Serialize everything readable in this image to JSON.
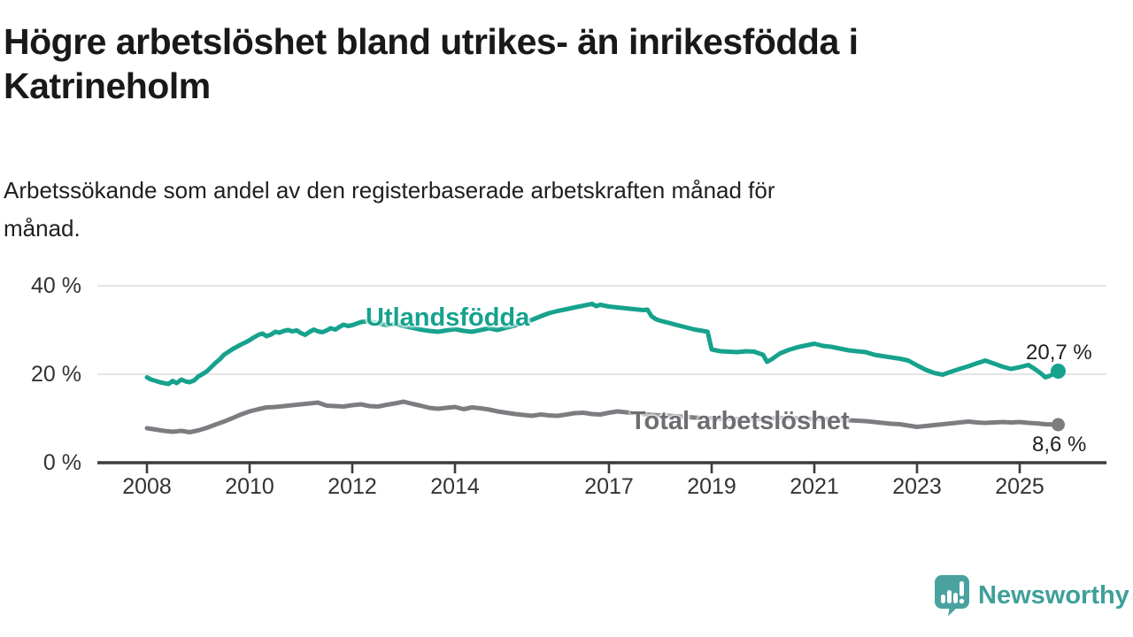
{
  "title": "Högre arbetslöshet bland utrikes- än inrikesfödda i\nKatrineholm",
  "subtitle": "Arbetssökande som andel av den registerbaserade arbetskraften månad för\nmånad.",
  "branding": {
    "name": "Newsworthy",
    "icon": "newsworthy-speech-bubble-bar-chart-icon",
    "wordmark_color": "#3f9f9a",
    "mark_color": "#4aa2a0"
  },
  "chart_data": {
    "type": "line",
    "title": "Högre arbetslöshet bland utrikes- än inrikesfödda i Katrineholm",
    "subtitle": "Arbetssökande som andel av den registerbaserade arbetskraften månad för månad.",
    "unit": "%",
    "xlabel": "",
    "ylabel": "",
    "xlim": [
      2007.0,
      2026.6
    ],
    "ylim": [
      0,
      45
    ],
    "grid": "horizontal",
    "legend_position": "inline-labels",
    "x_ticks": [
      2008,
      2010,
      2012,
      2014,
      2017,
      2019,
      2021,
      2023,
      2025
    ],
    "y_ticks": [
      {
        "value": 0,
        "label": "0 %"
      },
      {
        "value": 20,
        "label": "20 %"
      },
      {
        "value": 40,
        "label": "40 %"
      }
    ],
    "axis_color": "#3c3c3c",
    "gridline_color": "#dcdcdc",
    "series": [
      {
        "name": "Utlandsfödda",
        "color": "#16a28d",
        "end_label": "20,7 %",
        "end_value": 20.7,
        "points": [
          [
            2008.0,
            19.3
          ],
          [
            2008.08,
            18.8
          ],
          [
            2008.17,
            18.5
          ],
          [
            2008.25,
            18.2
          ],
          [
            2008.33,
            18.0
          ],
          [
            2008.42,
            17.8
          ],
          [
            2008.5,
            18.5
          ],
          [
            2008.58,
            18.0
          ],
          [
            2008.67,
            18.8
          ],
          [
            2008.75,
            18.4
          ],
          [
            2008.83,
            18.2
          ],
          [
            2008.92,
            18.6
          ],
          [
            2009.0,
            19.5
          ],
          [
            2009.08,
            20.0
          ],
          [
            2009.17,
            20.7
          ],
          [
            2009.25,
            21.6
          ],
          [
            2009.33,
            22.5
          ],
          [
            2009.42,
            23.4
          ],
          [
            2009.5,
            24.4
          ],
          [
            2009.58,
            25.0
          ],
          [
            2009.67,
            25.7
          ],
          [
            2009.75,
            26.2
          ],
          [
            2009.83,
            26.7
          ],
          [
            2009.92,
            27.2
          ],
          [
            2010.0,
            27.7
          ],
          [
            2010.08,
            28.3
          ],
          [
            2010.17,
            28.9
          ],
          [
            2010.25,
            29.2
          ],
          [
            2010.33,
            28.6
          ],
          [
            2010.42,
            29.0
          ],
          [
            2010.5,
            29.6
          ],
          [
            2010.58,
            29.4
          ],
          [
            2010.67,
            29.8
          ],
          [
            2010.75,
            30.0
          ],
          [
            2010.83,
            29.7
          ],
          [
            2010.92,
            29.9
          ],
          [
            2011.0,
            29.3
          ],
          [
            2011.08,
            28.9
          ],
          [
            2011.17,
            29.6
          ],
          [
            2011.25,
            30.1
          ],
          [
            2011.33,
            29.7
          ],
          [
            2011.42,
            29.5
          ],
          [
            2011.5,
            29.9
          ],
          [
            2011.58,
            30.4
          ],
          [
            2011.67,
            30.1
          ],
          [
            2011.75,
            30.7
          ],
          [
            2011.83,
            31.2
          ],
          [
            2011.92,
            30.9
          ],
          [
            2012.0,
            31.1
          ],
          [
            2012.17,
            31.8
          ],
          [
            2012.33,
            32.0
          ],
          [
            2012.5,
            31.5
          ],
          [
            2012.67,
            31.1
          ],
          [
            2012.83,
            31.4
          ],
          [
            2013.0,
            30.9
          ],
          [
            2013.17,
            30.5
          ],
          [
            2013.33,
            30.1
          ],
          [
            2013.5,
            29.8
          ],
          [
            2013.67,
            29.6
          ],
          [
            2013.83,
            29.9
          ],
          [
            2014.0,
            30.2
          ],
          [
            2014.17,
            29.8
          ],
          [
            2014.33,
            29.6
          ],
          [
            2014.5,
            30.0
          ],
          [
            2014.67,
            30.4
          ],
          [
            2014.83,
            30.0
          ],
          [
            2015.0,
            30.5
          ],
          [
            2015.17,
            31.0
          ],
          [
            2015.33,
            31.6
          ],
          [
            2015.5,
            32.3
          ],
          [
            2015.67,
            33.1
          ],
          [
            2015.83,
            33.8
          ],
          [
            2016.0,
            34.3
          ],
          [
            2016.17,
            34.7
          ],
          [
            2016.33,
            35.1
          ],
          [
            2016.5,
            35.5
          ],
          [
            2016.67,
            35.9
          ],
          [
            2016.75,
            35.4
          ],
          [
            2016.83,
            35.7
          ],
          [
            2017.0,
            35.3
          ],
          [
            2017.17,
            35.1
          ],
          [
            2017.33,
            34.9
          ],
          [
            2017.5,
            34.7
          ],
          [
            2017.67,
            34.5
          ],
          [
            2017.75,
            34.6
          ],
          [
            2017.83,
            33.1
          ],
          [
            2017.92,
            32.4
          ],
          [
            2018.0,
            32.1
          ],
          [
            2018.17,
            31.6
          ],
          [
            2018.33,
            31.1
          ],
          [
            2018.5,
            30.6
          ],
          [
            2018.67,
            30.1
          ],
          [
            2018.83,
            29.8
          ],
          [
            2018.92,
            29.6
          ],
          [
            2019.0,
            25.6
          ],
          [
            2019.17,
            25.2
          ],
          [
            2019.33,
            25.1
          ],
          [
            2019.5,
            25.0
          ],
          [
            2019.67,
            25.2
          ],
          [
            2019.83,
            25.1
          ],
          [
            2020.0,
            24.4
          ],
          [
            2020.08,
            22.8
          ],
          [
            2020.17,
            23.4
          ],
          [
            2020.33,
            24.7
          ],
          [
            2020.5,
            25.5
          ],
          [
            2020.67,
            26.1
          ],
          [
            2020.83,
            26.5
          ],
          [
            2021.0,
            26.9
          ],
          [
            2021.17,
            26.4
          ],
          [
            2021.33,
            26.2
          ],
          [
            2021.5,
            25.8
          ],
          [
            2021.67,
            25.4
          ],
          [
            2021.83,
            25.2
          ],
          [
            2022.0,
            25.0
          ],
          [
            2022.17,
            24.4
          ],
          [
            2022.33,
            24.1
          ],
          [
            2022.5,
            23.8
          ],
          [
            2022.67,
            23.5
          ],
          [
            2022.83,
            23.1
          ],
          [
            2023.0,
            22.0
          ],
          [
            2023.17,
            21.0
          ],
          [
            2023.33,
            20.3
          ],
          [
            2023.5,
            19.9
          ],
          [
            2023.67,
            20.6
          ],
          [
            2023.83,
            21.2
          ],
          [
            2024.0,
            21.8
          ],
          [
            2024.17,
            22.5
          ],
          [
            2024.33,
            23.1
          ],
          [
            2024.5,
            22.4
          ],
          [
            2024.67,
            21.7
          ],
          [
            2024.83,
            21.2
          ],
          [
            2025.0,
            21.6
          ],
          [
            2025.17,
            22.1
          ],
          [
            2025.33,
            20.9
          ],
          [
            2025.42,
            20.1
          ],
          [
            2025.5,
            19.3
          ],
          [
            2025.58,
            19.6
          ],
          [
            2025.75,
            20.7
          ]
        ]
      },
      {
        "name": "Total arbetslöshet",
        "color": "#7d7d81",
        "end_label": "8,6 %",
        "end_value": 8.6,
        "points": [
          [
            2008.0,
            7.8
          ],
          [
            2008.17,
            7.5
          ],
          [
            2008.33,
            7.2
          ],
          [
            2008.5,
            7.0
          ],
          [
            2008.67,
            7.2
          ],
          [
            2008.83,
            6.9
          ],
          [
            2009.0,
            7.3
          ],
          [
            2009.17,
            7.9
          ],
          [
            2009.33,
            8.6
          ],
          [
            2009.5,
            9.3
          ],
          [
            2009.67,
            10.1
          ],
          [
            2009.83,
            10.9
          ],
          [
            2010.0,
            11.6
          ],
          [
            2010.17,
            12.1
          ],
          [
            2010.33,
            12.5
          ],
          [
            2010.5,
            12.6
          ],
          [
            2010.67,
            12.8
          ],
          [
            2010.83,
            13.0
          ],
          [
            2011.0,
            13.2
          ],
          [
            2011.17,
            13.4
          ],
          [
            2011.33,
            13.6
          ],
          [
            2011.5,
            12.9
          ],
          [
            2011.67,
            12.8
          ],
          [
            2011.83,
            12.7
          ],
          [
            2012.0,
            13.0
          ],
          [
            2012.17,
            13.2
          ],
          [
            2012.33,
            12.8
          ],
          [
            2012.5,
            12.7
          ],
          [
            2012.67,
            13.1
          ],
          [
            2012.83,
            13.4
          ],
          [
            2013.0,
            13.8
          ],
          [
            2013.17,
            13.3
          ],
          [
            2013.33,
            12.9
          ],
          [
            2013.5,
            12.4
          ],
          [
            2013.67,
            12.2
          ],
          [
            2013.83,
            12.4
          ],
          [
            2014.0,
            12.6
          ],
          [
            2014.17,
            12.1
          ],
          [
            2014.33,
            12.5
          ],
          [
            2014.5,
            12.3
          ],
          [
            2014.67,
            12.0
          ],
          [
            2014.83,
            11.6
          ],
          [
            2015.0,
            11.3
          ],
          [
            2015.17,
            11.0
          ],
          [
            2015.33,
            10.8
          ],
          [
            2015.5,
            10.6
          ],
          [
            2015.67,
            10.9
          ],
          [
            2015.83,
            10.7
          ],
          [
            2016.0,
            10.6
          ],
          [
            2016.17,
            10.9
          ],
          [
            2016.33,
            11.2
          ],
          [
            2016.5,
            11.3
          ],
          [
            2016.67,
            11.0
          ],
          [
            2016.83,
            10.9
          ],
          [
            2017.0,
            11.3
          ],
          [
            2017.17,
            11.6
          ],
          [
            2017.33,
            11.4
          ],
          [
            2017.5,
            11.2
          ],
          [
            2017.67,
            11.0
          ],
          [
            2017.83,
            10.8
          ],
          [
            2018.0,
            10.7
          ],
          [
            2018.33,
            10.5
          ],
          [
            2018.67,
            10.2
          ],
          [
            2019.0,
            10.0
          ],
          [
            2019.33,
            9.9
          ],
          [
            2019.67,
            9.8
          ],
          [
            2020.0,
            9.9
          ],
          [
            2020.33,
            10.1
          ],
          [
            2020.67,
            10.0
          ],
          [
            2021.0,
            9.9
          ],
          [
            2021.33,
            9.8
          ],
          [
            2021.67,
            9.6
          ],
          [
            2022.0,
            9.4
          ],
          [
            2022.17,
            9.2
          ],
          [
            2022.33,
            9.0
          ],
          [
            2022.5,
            8.8
          ],
          [
            2022.67,
            8.7
          ],
          [
            2022.83,
            8.4
          ],
          [
            2023.0,
            8.1
          ],
          [
            2023.17,
            8.3
          ],
          [
            2023.33,
            8.5
          ],
          [
            2023.5,
            8.7
          ],
          [
            2023.67,
            8.9
          ],
          [
            2023.83,
            9.1
          ],
          [
            2024.0,
            9.3
          ],
          [
            2024.17,
            9.1
          ],
          [
            2024.33,
            9.0
          ],
          [
            2024.5,
            9.1
          ],
          [
            2024.67,
            9.2
          ],
          [
            2024.83,
            9.1
          ],
          [
            2025.0,
            9.2
          ],
          [
            2025.17,
            9.0
          ],
          [
            2025.33,
            8.9
          ],
          [
            2025.5,
            8.7
          ],
          [
            2025.75,
            8.6
          ]
        ]
      }
    ]
  }
}
